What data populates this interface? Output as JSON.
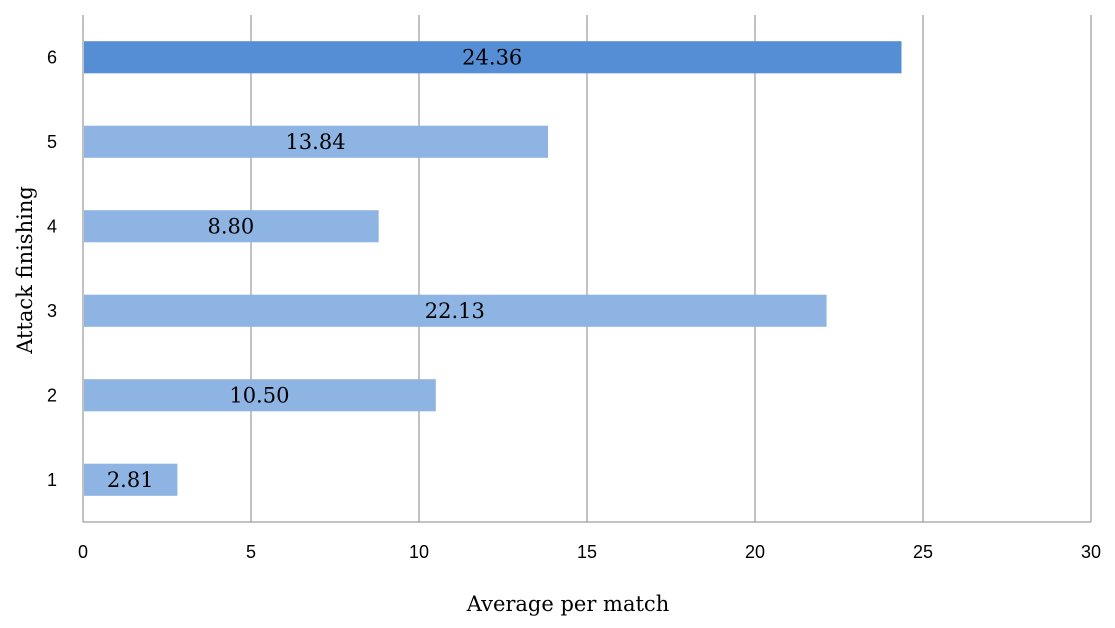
{
  "chart_data": {
    "type": "bar",
    "orientation": "horizontal",
    "categories": [
      "1",
      "2",
      "3",
      "4",
      "5",
      "6"
    ],
    "values": [
      2.81,
      10.5,
      22.13,
      8.8,
      13.84,
      24.36
    ],
    "value_labels": [
      "2.81",
      "10.50",
      "22.13",
      "8.80",
      "13.84",
      "24.36"
    ],
    "xlabel": "Average per match",
    "ylabel": "Attack finishing",
    "xlim": [
      0,
      30
    ],
    "x_ticks": [
      "0",
      "5",
      "10",
      "15",
      "20",
      "25",
      "30"
    ],
    "grid": "vertical",
    "highlight_category": "6",
    "colors": {
      "bar": "#8eb4e3",
      "highlight": "#558ed5",
      "gridline": "#868686",
      "axis": "#868686"
    }
  }
}
